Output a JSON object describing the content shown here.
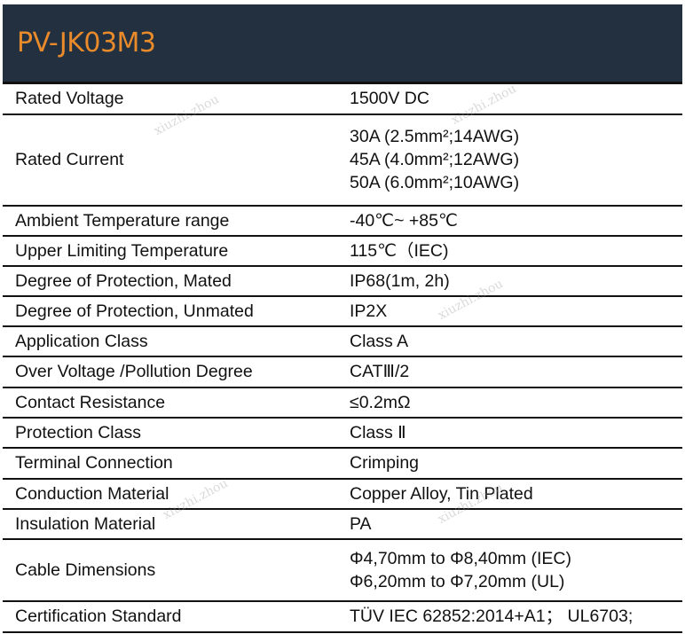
{
  "title": "PV-JK03M3",
  "watermark": "xiuzhi.zhou",
  "rows": [
    {
      "label": "Rated Voltage",
      "values": [
        "1500V DC"
      ]
    },
    {
      "label": "Rated Current",
      "values": [
        "30A (2.5mm²;14AWG)",
        "45A (4.0mm²;12AWG)",
        "50A (6.0mm²;10AWG)"
      ]
    },
    {
      "label": "Ambient Temperature range",
      "values": [
        "-40℃~ +85℃"
      ]
    },
    {
      "label": "Upper Limiting Temperature",
      "values": [
        "115℃（IEC)"
      ]
    },
    {
      "label": "Degree of Protection, Mated",
      "values": [
        "IP68(1m, 2h)"
      ]
    },
    {
      "label": "Degree of Protection, Unmated",
      "values": [
        "IP2X"
      ]
    },
    {
      "label": "Application Class",
      "values": [
        "Class A"
      ]
    },
    {
      "label": "Over Voltage /Pollution Degree",
      "values": [
        "CATⅢ/2"
      ]
    },
    {
      "label": "Contact Resistance",
      "values": [
        "≤0.2mΩ"
      ]
    },
    {
      "label": "Protection Class",
      "values": [
        "Class Ⅱ"
      ]
    },
    {
      "label": "Terminal Connection",
      "values": [
        "Crimping"
      ]
    },
    {
      "label": "Conduction Material",
      "values": [
        "Copper Alloy, Tin Plated"
      ]
    },
    {
      "label": "Insulation Material",
      "values": [
        "PA"
      ]
    },
    {
      "label": "Cable Dimensions",
      "values": [
        "Φ4,70mm to Φ8,40mm (IEC)",
        "Φ6,20mm to Φ7,20mm (UL)"
      ]
    },
    {
      "label": "Certification Standard",
      "values": [
        "TÜV IEC 62852:2014+A1； UL6703;"
      ]
    }
  ]
}
